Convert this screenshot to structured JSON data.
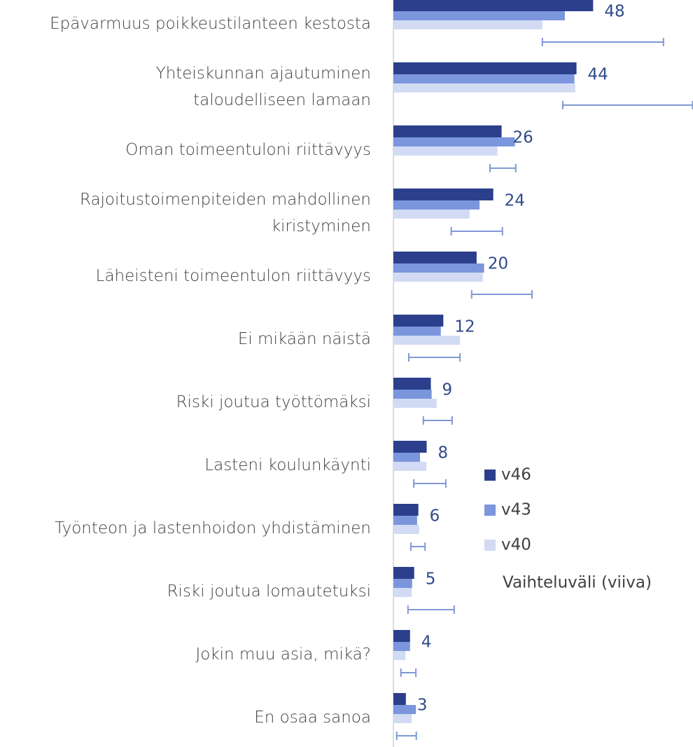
{
  "chart_data": {
    "type": "bar",
    "orientation": "horizontal",
    "categories": [
      "Epävarmuus poikkeustilanteen kestosta",
      "Yhteiskunnan ajautuminen\ntaloudelliseen lamaan",
      "Oman toimeentuloni riittävyys",
      "Rajoitustoimenpiteiden mahdollinen\nkiristyminen",
      "Läheisteni toimeentulon riittävyys",
      "Ei mikään näistä",
      "Riski joutua työttömäksi",
      "Lasteni koulunkäynti",
      "Työnteon ja lastenhoidon yhdistäminen",
      "Riski joutua lomautetuksi",
      "Jokin muu asia, mikä?",
      "En osaa sanoa"
    ],
    "series": [
      {
        "name": "v46",
        "color": "#2b3f8c",
        "values": [
          48,
          44,
          26,
          24,
          20,
          12,
          9,
          8,
          6,
          5,
          4,
          3
        ]
      },
      {
        "name": "v43",
        "color": "#7b96dc",
        "values": [
          41.2,
          43.5,
          29.2,
          20.7,
          21.8,
          11.4,
          9.2,
          6.4,
          5.7,
          4.5,
          4,
          5.4
        ]
      },
      {
        "name": "v40",
        "color": "#d2dbf3",
        "values": [
          35.8,
          43.7,
          25,
          18.3,
          21.5,
          16,
          10.4,
          7.9,
          6.2,
          4.4,
          2.9,
          4.4
        ]
      }
    ],
    "range": {
      "name": "Vaihteluväli (viiva)",
      "color": "#7f98d6",
      "min": [
        35.8,
        40.7,
        23.2,
        13.9,
        18.8,
        3.7,
        7.2,
        4.9,
        4.2,
        3.5,
        1.8,
        0.8
      ],
      "max": [
        64.9,
        71.9,
        29.4,
        26.2,
        33.3,
        16,
        14.1,
        12.6,
        7.6,
        14.6,
        5.4,
        5.5
      ]
    },
    "xlim": [
      0,
      72
    ]
  }
}
